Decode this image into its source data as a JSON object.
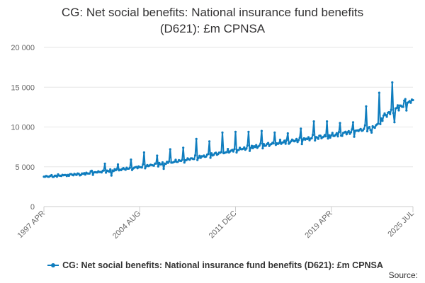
{
  "chart_data": {
    "type": "line",
    "title_line1": "CG: Net social benefits: National insurance fund benefits",
    "title_line2": "(D621): £m CPNSA",
    "xlabel": "",
    "ylabel": "",
    "x_range": [
      "1997 APR",
      "2025 JUL"
    ],
    "x_ticks": [
      "1997 APR",
      "2004 AUG",
      "2011 DEC",
      "2019 APR",
      "2025 JUL"
    ],
    "y_ticks": [
      "0",
      "5 000",
      "10 000",
      "15 000",
      "20 000"
    ],
    "ylim": [
      0,
      20000
    ],
    "grid": true,
    "legend_position": "bottom",
    "series": [
      {
        "name": "CG: Net social benefits: National insurance fund benefits (D621): £m CPNSA",
        "color": "#0f7dbe",
        "frequency": "monthly",
        "start": "1997 APR",
        "trend_points": [
          {
            "date": "1997 APR",
            "value": 3750
          },
          {
            "date": "2000 APR",
            "value": 4100
          },
          {
            "date": "2004 AUG",
            "value": 4950
          },
          {
            "date": "2008 APR",
            "value": 5900
          },
          {
            "date": "2011 DEC",
            "value": 7100
          },
          {
            "date": "2015 APR",
            "value": 8000
          },
          {
            "date": "2019 APR",
            "value": 8900
          },
          {
            "date": "2021 APR",
            "value": 9500
          },
          {
            "date": "2022 APR",
            "value": 9900
          },
          {
            "date": "2022 OCT",
            "value": 10150
          },
          {
            "date": "2023 APR",
            "value": 11300
          },
          {
            "date": "2024 APR",
            "value": 12300
          },
          {
            "date": "2025 JUL",
            "value": 13300
          }
        ],
        "annual_peaks": [
          {
            "date": "2000 DEC",
            "value": 4500
          },
          {
            "date": "2001 DEC",
            "value": 5400
          },
          {
            "date": "2002 DEC",
            "value": 5300
          },
          {
            "date": "2003 DEC",
            "value": 5900
          },
          {
            "date": "2004 DEC",
            "value": 6800
          },
          {
            "date": "2005 DEC",
            "value": 6400
          },
          {
            "date": "2006 DEC",
            "value": 7200
          },
          {
            "date": "2007 DEC",
            "value": 7400
          },
          {
            "date": "2008 DEC",
            "value": 8500
          },
          {
            "date": "2009 DEC",
            "value": 8200
          },
          {
            "date": "2010 DEC",
            "value": 9300
          },
          {
            "date": "2011 DEC",
            "value": 9400
          },
          {
            "date": "2012 DEC",
            "value": 9400
          },
          {
            "date": "2013 DEC",
            "value": 9500
          },
          {
            "date": "2014 DEC",
            "value": 9300
          },
          {
            "date": "2015 DEC",
            "value": 9200
          },
          {
            "date": "2016 DEC",
            "value": 9800
          },
          {
            "date": "2017 DEC",
            "value": 10700
          },
          {
            "date": "2018 DEC",
            "value": 10700
          },
          {
            "date": "2019 DEC",
            "value": 10500
          },
          {
            "date": "2020 DEC",
            "value": 10600
          },
          {
            "date": "2021 DEC",
            "value": 12600
          },
          {
            "date": "2022 DEC",
            "value": 14300
          },
          {
            "date": "2023 DEC",
            "value": 15600
          },
          {
            "date": "2024 DEC",
            "value": 13500
          }
        ],
        "notable_dips": [
          {
            "date": "2002 JUN",
            "value": 3900
          },
          {
            "date": "2006 JUN",
            "value": 4750
          },
          {
            "date": "2022 MAY",
            "value": 9300
          },
          {
            "date": "2024 FEB",
            "value": 10600
          }
        ]
      }
    ]
  },
  "source_label": "Source:"
}
